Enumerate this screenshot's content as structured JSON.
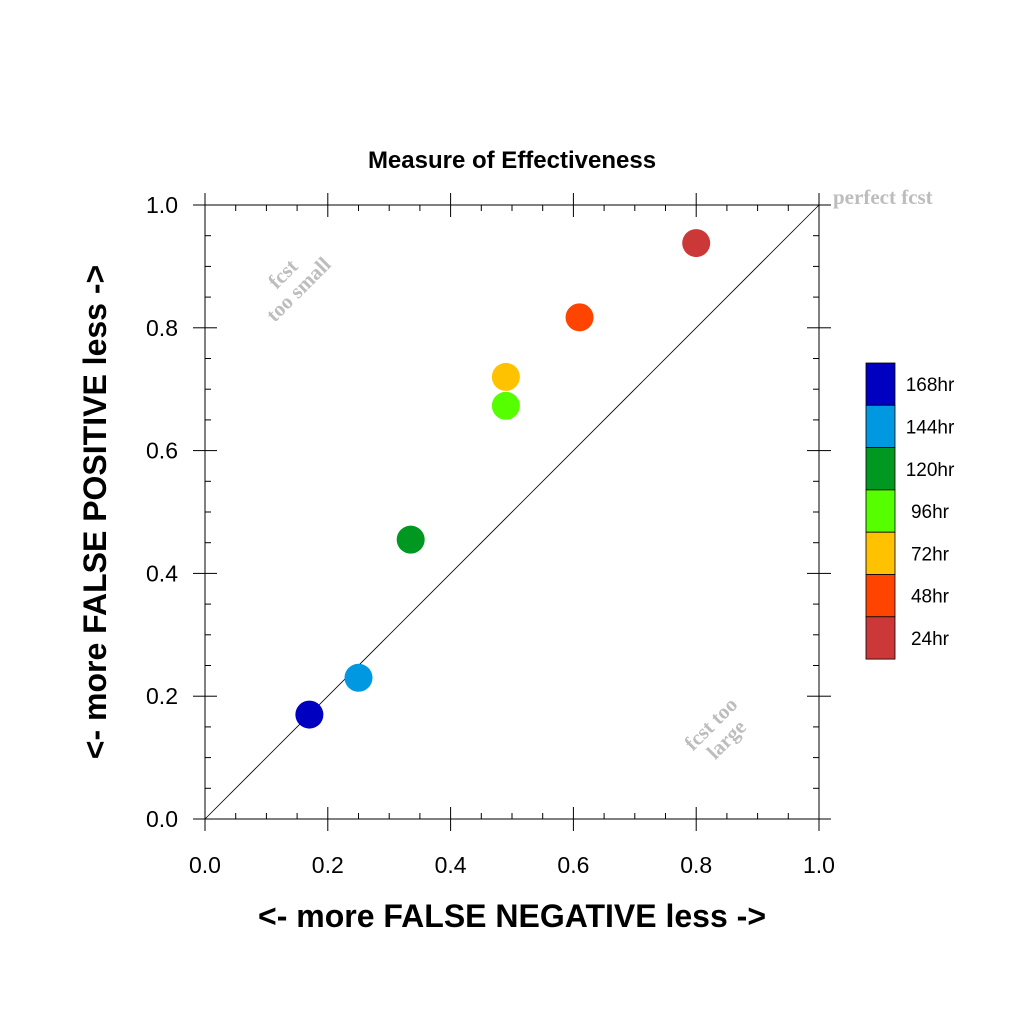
{
  "chart_data": {
    "type": "scatter",
    "title": "Measure of Effectiveness",
    "xlabel": "<- more   FALSE NEGATIVE   less ->",
    "ylabel": "<- more   FALSE POSITIVE   less ->",
    "xlim": [
      0.0,
      1.0
    ],
    "ylim": [
      0.0,
      1.0
    ],
    "x_ticks": [
      "0.0",
      "0.2",
      "0.4",
      "0.6",
      "0.8",
      "1.0"
    ],
    "y_ticks": [
      "0.0",
      "0.2",
      "0.4",
      "0.6",
      "0.8",
      "1.0"
    ],
    "grid": false,
    "legend_position": "right",
    "reference_line": {
      "from": [
        0,
        0
      ],
      "to": [
        1,
        1
      ]
    },
    "annotations": {
      "perfect": "perfect fcst",
      "small_line1": "fcst",
      "small_line2": "too small",
      "large_line1": "fcst too",
      "large_line2": "large"
    },
    "points": [
      {
        "name": "168hr",
        "x": 0.17,
        "y": 0.17,
        "color": "#0000c0"
      },
      {
        "name": "144hr",
        "x": 0.25,
        "y": 0.23,
        "color": "#0098e0"
      },
      {
        "name": "120hr",
        "x": 0.335,
        "y": 0.455,
        "color": "#009820"
      },
      {
        "name": "96hr",
        "x": 0.49,
        "y": 0.673,
        "color": "#55ff00"
      },
      {
        "name": "72hr",
        "x": 0.49,
        "y": 0.72,
        "color": "#ffc200"
      },
      {
        "name": "48hr",
        "x": 0.61,
        "y": 0.817,
        "color": "#ff4400"
      },
      {
        "name": "24hr",
        "x": 0.8,
        "y": 0.938,
        "color": "#cc3838"
      }
    ]
  }
}
